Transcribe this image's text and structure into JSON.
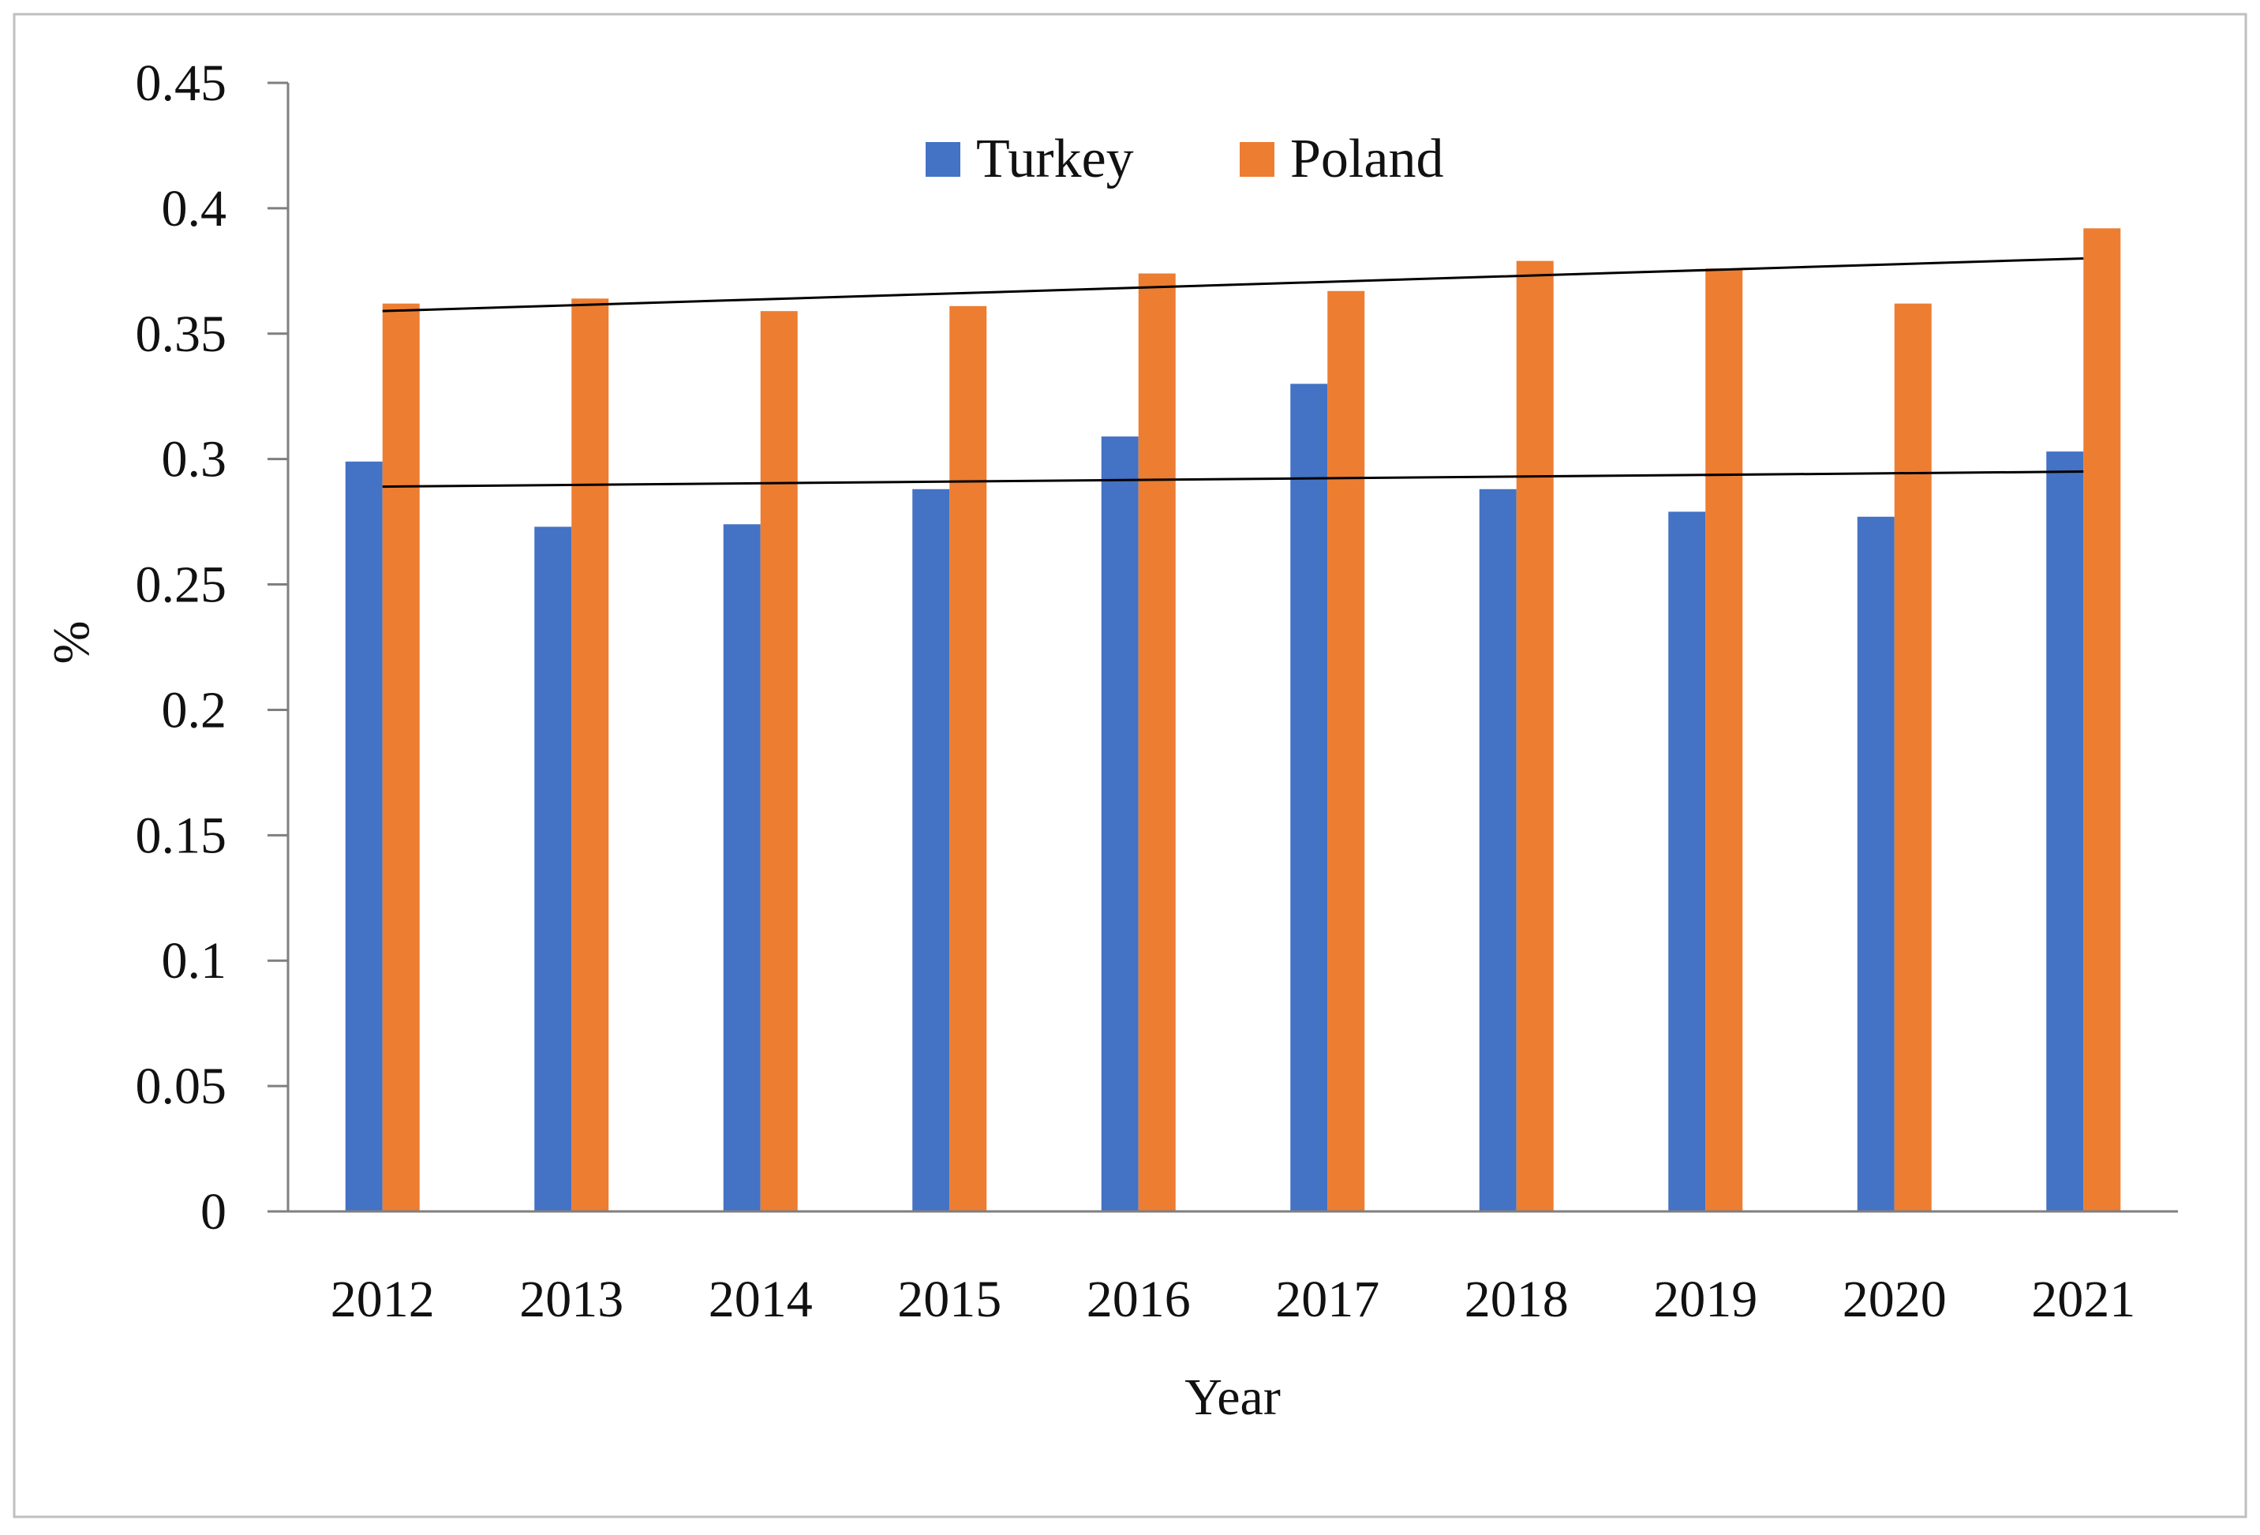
{
  "chart_data": {
    "type": "bar",
    "title": "",
    "xlabel": "Year",
    "ylabel": "%",
    "ylim": [
      0,
      0.45
    ],
    "yticks": [
      "0",
      "0.05",
      "0.1",
      "0.15",
      "0.2",
      "0.25",
      "0.3",
      "0.35",
      "0.4",
      "0.45"
    ],
    "ytick_values": [
      0,
      0.05,
      0.1,
      0.15,
      0.2,
      0.25,
      0.3,
      0.35,
      0.4,
      0.45
    ],
    "categories": [
      "2012",
      "2013",
      "2014",
      "2015",
      "2016",
      "2017",
      "2018",
      "2019",
      "2020",
      "2021"
    ],
    "series": [
      {
        "name": "Turkey",
        "color": "#4472C4",
        "values": [
          0.299,
          0.273,
          0.274,
          0.288,
          0.309,
          0.33,
          0.288,
          0.279,
          0.277,
          0.303
        ],
        "trendline": [
          0.289,
          0.295
        ]
      },
      {
        "name": "Poland",
        "color": "#ED7D31",
        "values": [
          0.362,
          0.364,
          0.359,
          0.361,
          0.374,
          0.367,
          0.379,
          0.376,
          0.362,
          0.392
        ],
        "trendline": [
          0.359,
          0.38
        ]
      }
    ],
    "legend_position": "top-center",
    "grid": false,
    "trendline_color": "#000000"
  }
}
